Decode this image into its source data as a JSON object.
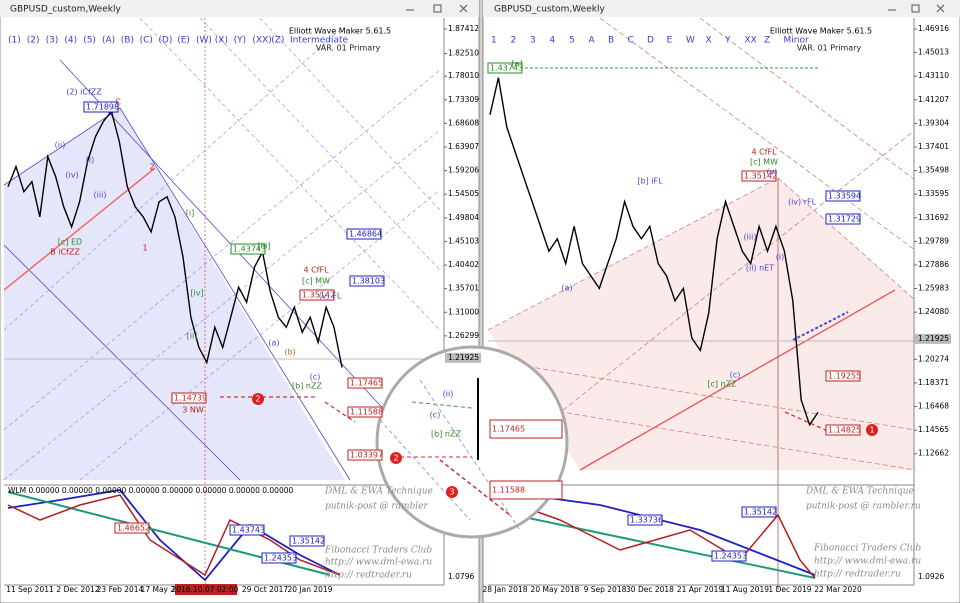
{
  "windows": [
    {
      "title": "GBPUSD_custom,Weekly",
      "buttons": [
        "(1)",
        "(2)",
        "(3)",
        "(4)",
        "(5)",
        "(A)",
        "(B)",
        "(C)",
        "(D)",
        "(E)",
        "(W)",
        "(X)",
        "(Y)",
        "(XX)",
        "(Z)",
        "Intermediate"
      ],
      "indicator": "Elliott Wave Maker 5.61.5",
      "variant": "VAR. 01 Primary",
      "ylim": [
        0.968,
        1.896
      ],
      "yticks": [
        1.87412,
        {
          "value": 1.8251,
          "label": "1.82510"
        },
        {
          "value": 1.7801,
          "label": "1.78010"
        },
        1.73309,
        1.68608,
        1.63907,
        1.59206,
        1.54505,
        1.49804,
        1.45103,
        1.40402,
        1.35701,
        {
          "value": 1.31,
          "label": "1.31000"
        },
        1.26299
      ],
      "current_price": 1.21925,
      "closes": [
        1.56,
        1.6,
        1.55,
        1.57,
        1.5,
        1.62,
        1.58,
        1.52,
        1.48,
        1.53,
        1.61,
        1.66,
        1.69,
        1.71,
        1.65,
        1.56,
        1.52,
        1.5,
        1.47,
        1.53,
        1.54,
        1.5,
        1.42,
        1.3,
        1.24,
        1.21,
        1.28,
        1.24,
        1.3,
        1.36,
        1.33,
        1.4,
        1.43,
        1.35,
        1.3,
        1.28,
        1.32,
        1.27,
        1.3,
        1.25,
        1.32,
        1.28,
        1.2
      ],
      "price_labels": [
        "1.71898",
        "1.43743",
        "1.35142",
        "1.38103",
        "1.46864",
        "1.17465",
        "1.11588",
        "1.03397",
        "1.14739"
      ],
      "wave_labels": [
        "(2) iCfZZ",
        "C",
        "(ii)",
        "(iv)",
        "(i)",
        "(iii)",
        "[c] ED",
        "B iCfZZ",
        "2",
        "1",
        "[i]",
        "[ii]",
        "[iv]",
        "[iii]",
        "3 NW",
        "4 CfFL",
        "[c] MW",
        "(v) FL",
        "[b] nZZ",
        "(c)",
        "(a)",
        "(b)"
      ],
      "markers": [
        "2"
      ],
      "sub_label": "WLM 0.00000 0.00000 0.00000 0.00000 0.00000 0.00000 0.00000 0.00000",
      "sub_tick": "1.0796",
      "sub_labels": [
        "1.46652",
        "1.43743",
        "1.24353",
        "1.35142"
      ],
      "watermark": [
        "DML & EWA Technique",
        "putnik-post @ rambler",
        "Fibonacci Traders Club",
        "http:// www.dml-ewa.ru",
        "http:// redtrader.ru"
      ],
      "dates": [
        "11 Sep 2011",
        "2 Dec 2012",
        "23 Feb 2014",
        "17 May 2015",
        "2016.10.07 02:00",
        "29 Oct 2017",
        "20 Jan 2019"
      ]
    },
    {
      "title": "GBPUSD_custom,Weekly",
      "buttons": [
        "1",
        "2",
        "3",
        "4",
        "5",
        "A",
        "B",
        "C",
        "D",
        "E",
        "W",
        "X",
        "Y",
        "XX",
        "Z",
        "Minor"
      ],
      "indicator": "Elliott Wave Maker 5.61.5",
      "variant": "VAR. 01 Primary",
      "ylim": [
        1.10222,
        1.47803
      ],
      "yticks": [
        1.46916,
        1.45013,
        {
          "value": 1.4311,
          "label": "1.43110"
        },
        1.41207,
        1.39304,
        1.37401,
        1.35498,
        1.33595,
        1.31692,
        1.29789,
        1.27886,
        1.25983,
        {
          "value": 1.2408,
          "label": "1.24080"
        },
        1.20274,
        1.18371,
        1.16468,
        1.14565,
        1.12662
      ],
      "current_price": 1.21925,
      "closes": [
        1.4,
        1.43,
        1.39,
        1.37,
        1.35,
        1.33,
        1.31,
        1.29,
        1.3,
        1.28,
        1.31,
        1.28,
        1.27,
        1.26,
        1.28,
        1.3,
        1.33,
        1.31,
        1.3,
        1.31,
        1.28,
        1.27,
        1.25,
        1.26,
        1.22,
        1.21,
        1.24,
        1.3,
        1.33,
        1.31,
        1.29,
        1.28,
        1.31,
        1.29,
        1.31,
        1.29,
        1.25,
        1.17,
        1.15,
        1.16
      ],
      "price_labels": [
        "1.43743",
        "1.35142",
        "1.33594",
        "1.31729",
        "1.19255",
        "1.14825"
      ],
      "wave_labels": [
        "4 CfFL",
        "[c] MW",
        "(v)",
        "[b] iFL",
        "(a)",
        "(iii)",
        "(iv) rFL",
        "[c] nZZ",
        "(c)",
        "(i)",
        "(ii) nET",
        "[a]"
      ],
      "markers": [
        "1"
      ],
      "sub_label": "",
      "sub_tick": "1.0926",
      "sub_labels": [
        "1.33736",
        "1.35142",
        "1.24353"
      ],
      "watermark": [
        "DML & EWA Technique",
        "putnik-post @ rambler.ru",
        "Fibonacci Traders Club",
        "http:// www.dml-ewa.ru",
        "http:// redtrader.ru"
      ],
      "dates": [
        "28 Jan 2018",
        "20 May 2018",
        "9 Sep 2018",
        "30 Dec 2018",
        "21 Apr 2019",
        "11 Aug 2019",
        "1 Dec 2019",
        "22 Mar 2020"
      ]
    }
  ],
  "callout": {
    "labels": [
      "(ii)",
      "(c)",
      "[b] nZZ"
    ],
    "prices": [
      "1.17465",
      "1.11588"
    ],
    "markers": [
      "2",
      "3"
    ]
  }
}
